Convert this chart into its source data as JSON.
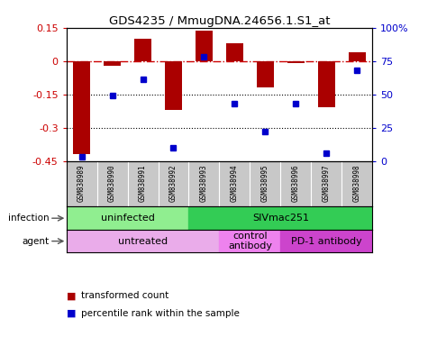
{
  "title": "GDS4235 / MmugDNA.24656.1.S1_at",
  "samples": [
    "GSM838989",
    "GSM838990",
    "GSM838991",
    "GSM838992",
    "GSM838993",
    "GSM838994",
    "GSM838995",
    "GSM838996",
    "GSM838997",
    "GSM838998"
  ],
  "transformed_count": [
    -0.42,
    -0.02,
    0.1,
    -0.22,
    0.135,
    0.08,
    -0.12,
    -0.01,
    -0.21,
    0.04
  ],
  "percentile_rank": [
    3,
    49,
    61,
    10,
    78,
    43,
    22,
    43,
    6,
    68
  ],
  "ylim": [
    -0.45,
    0.15
  ],
  "yticks": [
    0.15,
    0.0,
    -0.15,
    -0.3,
    -0.45
  ],
  "right_yticks": [
    100,
    75,
    50,
    25,
    0
  ],
  "right_tick_labels": [
    "100%",
    "75",
    "50",
    "25",
    "0"
  ],
  "hline_y": 0.0,
  "dotted_lines": [
    -0.15,
    -0.3
  ],
  "bar_color": "#AA0000",
  "dot_color": "#0000CC",
  "infection_labels": [
    {
      "label": "uninfected",
      "start": 0,
      "end": 4,
      "color": "#90EE90"
    },
    {
      "label": "SIVmac251",
      "start": 4,
      "end": 10,
      "color": "#33CC55"
    }
  ],
  "agent_labels": [
    {
      "label": "untreated",
      "start": 0,
      "end": 5,
      "color": "#EAACEA"
    },
    {
      "label": "control\nantibody",
      "start": 5,
      "end": 7,
      "color": "#EE82EE"
    },
    {
      "label": "PD-1 antibody",
      "start": 7,
      "end": 10,
      "color": "#CC44CC"
    }
  ],
  "sample_bg": "#C8C8C8",
  "legend_items": [
    {
      "label": "transformed count",
      "color": "#AA0000"
    },
    {
      "label": "percentile rank within the sample",
      "color": "#0000CC"
    }
  ]
}
